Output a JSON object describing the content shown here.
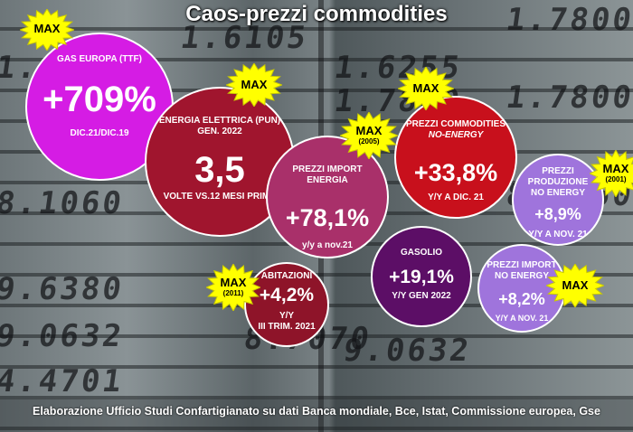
{
  "title": "Caos-prezzi commodities",
  "footer": "Elaborazione Ufficio Studi Confartigianato su dati Banca mondiale, Bce, Istat, Commissione europea, Gse",
  "background_digits": [
    "1.6175",
    "1.6105",
    "1.6255",
    "1.7800",
    "1.7800",
    "8.1060",
    "1.7800",
    "9.6380",
    "8.1060",
    "9.0632",
    "8.7070",
    "9.0632",
    "4.4701"
  ],
  "colors": {
    "burst": "#ffff00",
    "magenta": "#d51ce4",
    "crimson": "#a0152e",
    "mauve": "#a9306a",
    "red": "#c8101c",
    "lavender": "#9f74dc",
    "purple": "#5c0e66",
    "maroon": "#8e1429"
  },
  "bubbles": {
    "gas": {
      "label": "GAS EUROPA (TTF)",
      "value": "+709%",
      "sub": "DIC.21/DIC.19"
    },
    "energy": {
      "label1": "ENERGIA ELETTRICA (PUN)",
      "label2": "GEN. 2022",
      "value": "3,5",
      "sub": "VOLTE VS.12 MESI PRIMA"
    },
    "import_energy": {
      "label1": "PREZZI IMPORT",
      "label2": "ENERGIA",
      "value": "+78,1%",
      "sub": "y/y  a nov.21"
    },
    "commodities": {
      "label1": "PREZZI COMMODITIES",
      "label2": "NO-ENERGY",
      "value": "+33,8%",
      "sub": "Y/Y  A DIC. 21"
    },
    "production": {
      "label1": "PREZZI",
      "label2": "PRODUZIONE",
      "label3": "NO ENERGY",
      "value": "+8,9%",
      "sub": "Y/Y  A NOV. 21"
    },
    "diesel": {
      "label": "GASOLIO",
      "value": "+19,1%",
      "sub": "Y/Y  GEN 2022"
    },
    "import_noenergy": {
      "label1": "PREZZI IMPORT",
      "label2": "NO ENERGY",
      "value": "+8,2%",
      "sub": "Y/Y  A NOV. 21"
    },
    "housing": {
      "label": "ABITAZIONI",
      "value": "+4,2%",
      "sub1": "Y/Y",
      "sub2": "III TRIM. 2021"
    }
  },
  "bursts": {
    "gas": {
      "text": "MAX",
      "year": ""
    },
    "energy": {
      "text": "MAX",
      "year": ""
    },
    "import_energy": {
      "text": "MAX",
      "year": "(2005)"
    },
    "commodities": {
      "text": "MAX",
      "year": ""
    },
    "production": {
      "text": "MAX",
      "year": "(2001)"
    },
    "import_noenergy": {
      "text": "MAX",
      "year": ""
    },
    "housing": {
      "text": "MAX",
      "year": "(2011)"
    }
  }
}
